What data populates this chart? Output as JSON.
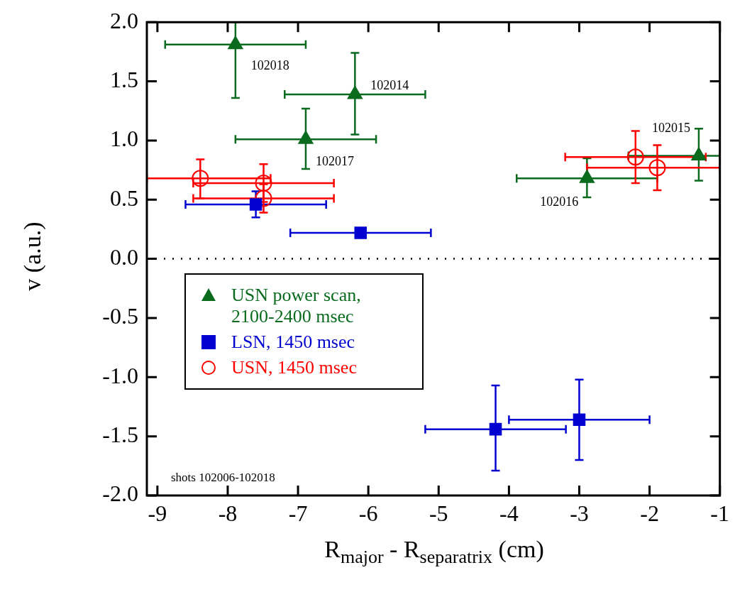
{
  "chart_data": {
    "type": "scatter",
    "xlabel": "R$_{major}$ - R$_{separatrix}$ (cm)",
    "ylabel": "v  (a.u.)",
    "xlim": [
      -9.15,
      -1
    ],
    "xticks": [
      -9,
      -8,
      -7,
      -6,
      -5,
      -4,
      -3,
      -2,
      -1
    ],
    "ylim": [
      -2,
      2
    ],
    "yticks": [
      {
        "value": -2,
        "label": "-2.0"
      },
      {
        "value": -1.5,
        "label": "-1.5"
      },
      {
        "value": -1,
        "label": "-1.0"
      },
      {
        "value": -0.5,
        "label": "-0.5"
      },
      {
        "value": 0,
        "label": "0.0"
      },
      {
        "value": 0.5,
        "label": "0.5"
      },
      {
        "value": 1,
        "label": "1.0"
      },
      {
        "value": 1.5,
        "label": "1.5"
      },
      {
        "value": 2,
        "label": "2.0"
      }
    ],
    "grid": false,
    "legend": "left",
    "series": [
      {
        "name": "USN power scan, 2100-2400 msec",
        "color": "#0a6b1f",
        "marker": "triangle",
        "x": [
          -7.89,
          -6.19,
          -6.89,
          -2.89,
          -1.3
        ],
        "values": [
          1.81,
          1.39,
          1.01,
          0.68,
          0.87
        ],
        "errors": [
          [
            1.36,
            2.0
          ],
          [
            1.05,
            1.74
          ],
          [
            0.76,
            1.27
          ],
          [
            0.52,
            0.85
          ],
          [
            0.66,
            1.1
          ]
        ],
        "xerrors": [
          1.0,
          1.0,
          1.0,
          1.0,
          [
            -2.3,
            -1
          ]
        ]
      },
      {
        "name": "LSN, 1450 msec",
        "color": "#0000d0",
        "marker": "square",
        "x": [
          -7.6,
          -6.11,
          -4.19,
          -3.0
        ],
        "values": [
          0.46,
          0.22,
          -1.44,
          -1.36
        ],
        "errors": [
          [
            0.35,
            0.57
          ],
          null,
          [
            -1.79,
            -1.07
          ],
          [
            -1.7,
            -1.02
          ]
        ],
        "xerrors": [
          1.0,
          1.0,
          1.0,
          1.0
        ]
      },
      {
        "name": "USN, 1450 msec",
        "color": "#ff0000",
        "marker": "circle",
        "x": [
          -8.39,
          -7.49,
          -7.49,
          -2.2,
          -1.89
        ],
        "values": [
          0.68,
          0.64,
          0.51,
          0.86,
          0.77
        ],
        "errors": [
          [
            0.51,
            0.84
          ],
          0.16,
          0.12,
          [
            0.64,
            1.08
          ],
          [
            0.58,
            0.96
          ]
        ],
        "xerrors": [
          [
            -9.15,
            -7.39
          ],
          1.0,
          1.0,
          1.0,
          [
            -2.89,
            -1
          ]
        ]
      }
    ],
    "ref_lines": [
      {
        "axis": "y",
        "value": 0,
        "color": "#000000",
        "line_style": "dotted"
      }
    ],
    "annotations": [
      {
        "text": "102018",
        "x": -7.89,
        "y": 1.81
      },
      {
        "text": "102014",
        "x": -6.19,
        "y": 1.39
      },
      {
        "text": "102017",
        "x": -6.89,
        "y": 1.01
      },
      {
        "text": "102016",
        "x": -2.89,
        "y": 0.68
      },
      {
        "text": "102015",
        "x": -1.3,
        "y": 0.87
      },
      "shots 102006-102018"
    ]
  }
}
